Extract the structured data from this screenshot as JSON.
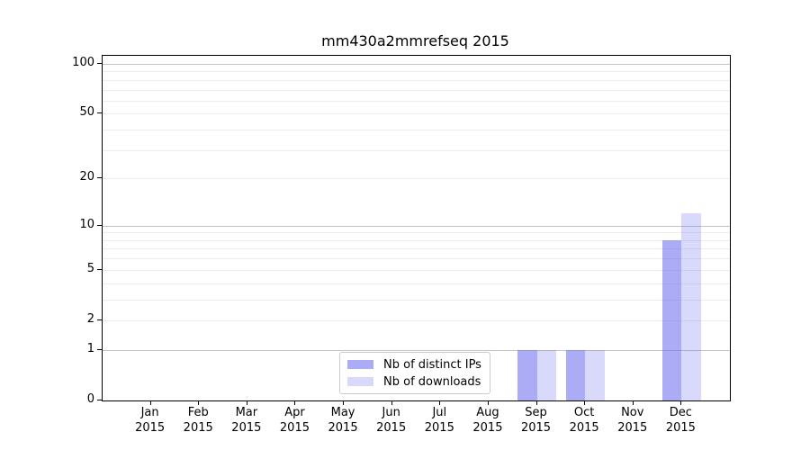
{
  "chart_data": {
    "type": "bar",
    "title": "mm430a2mmrefseq 2015",
    "categories": [
      "Jan",
      "Feb",
      "Mar",
      "Apr",
      "May",
      "Jun",
      "Jul",
      "Aug",
      "Sep",
      "Oct",
      "Nov",
      "Dec"
    ],
    "year_label": "2015",
    "series": [
      {
        "name": "Nb of distinct IPs",
        "color": "rgba(102,102,238,0.55)",
        "values": [
          0,
          0,
          0,
          0,
          0,
          0,
          0,
          0,
          1,
          1,
          0,
          8
        ]
      },
      {
        "name": "Nb of downloads",
        "color": "rgba(102,102,238,0.25)",
        "values": [
          0,
          0,
          0,
          0,
          0,
          0,
          0,
          0,
          1,
          1,
          0,
          12
        ]
      }
    ],
    "y_axis": {
      "scale": "log10(1+v)",
      "ticks": [
        0,
        1,
        2,
        5,
        10,
        20,
        50,
        100
      ],
      "ylim": [
        0,
        113
      ],
      "major_gridlines": [
        1,
        10,
        100
      ],
      "minor_gridlines": [
        2,
        3,
        4,
        5,
        6,
        7,
        8,
        9,
        20,
        30,
        40,
        50,
        60,
        70,
        80,
        90
      ]
    },
    "xlabel": "",
    "ylabel": "",
    "grid": "on",
    "legend_position": "lower center"
  },
  "colors": {
    "bar_dark": "rgba(102,102,238,0.55)",
    "bar_light": "rgba(102,102,238,0.25)",
    "grid_major": "#c3c3c3",
    "grid_minor": "#ececec",
    "legend_border": "#cccccc"
  }
}
